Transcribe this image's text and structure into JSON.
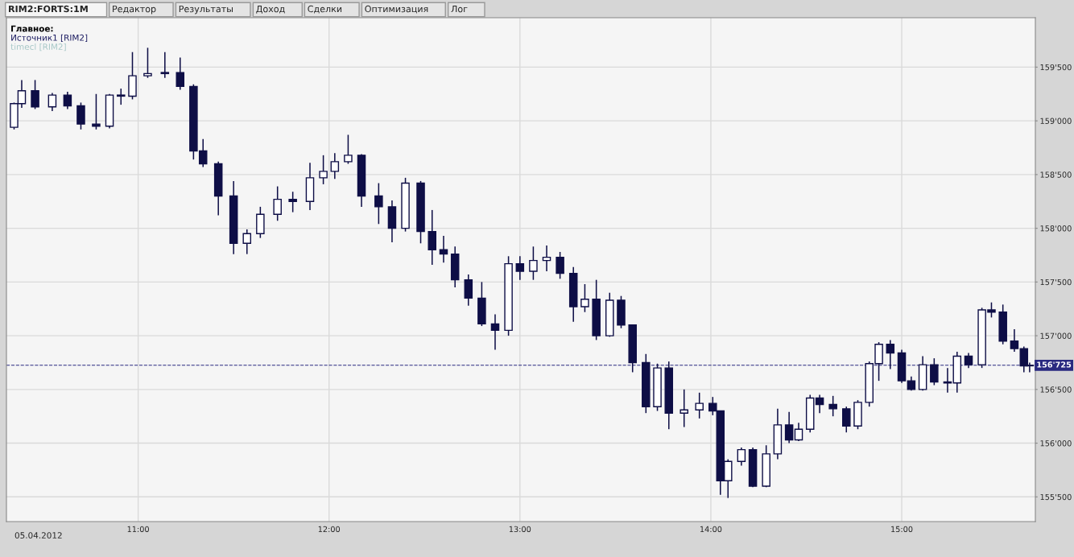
{
  "chart_data": {
    "type": "candlestick",
    "color": "#0e0e46",
    "x": [
      10.35,
      10.39,
      10.46,
      10.55,
      10.63,
      10.7,
      10.78,
      10.85,
      10.91,
      10.97,
      11.05,
      11.14,
      11.22,
      11.29,
      11.34,
      11.42,
      11.5,
      11.57,
      11.64,
      11.73,
      11.81,
      11.9,
      11.97,
      12.03,
      12.1,
      12.17,
      12.26,
      12.33,
      12.4,
      12.48,
      12.54,
      12.6,
      12.66,
      12.73,
      12.8,
      12.87,
      12.94,
      13.0,
      13.07,
      13.14,
      13.21,
      13.28,
      13.34,
      13.4,
      13.47,
      13.53,
      13.59,
      13.66,
      13.72,
      13.78,
      13.86,
      13.94,
      14.01,
      14.05,
      14.09,
      14.16,
      14.22,
      14.29,
      14.35,
      14.41,
      14.46,
      14.52,
      14.57,
      14.64,
      14.71,
      14.77,
      14.83,
      14.88,
      14.94,
      15.0,
      15.05,
      15.11,
      15.17,
      15.24,
      15.29,
      15.35,
      15.42,
      15.47,
      15.53,
      15.59,
      15.64,
      15.67
    ],
    "ohlc": [
      [
        158940,
        159170,
        158920,
        159160
      ],
      [
        159160,
        159380,
        159120,
        159280
      ],
      [
        159280,
        159380,
        159110,
        159130
      ],
      [
        159130,
        159260,
        159090,
        159240
      ],
      [
        159240,
        159270,
        159110,
        159140
      ],
      [
        159140,
        159170,
        158920,
        158970
      ],
      [
        158970,
        159250,
        158920,
        158950
      ],
      [
        158950,
        159250,
        158930,
        159240
      ],
      [
        159240,
        159300,
        159150,
        159230
      ],
      [
        159230,
        159640,
        159200,
        159420
      ],
      [
        159420,
        159680,
        159400,
        159440
      ],
      [
        159440,
        159640,
        159400,
        159450
      ],
      [
        159450,
        159590,
        159290,
        159320
      ],
      [
        159320,
        159340,
        158640,
        158720
      ],
      [
        158720,
        158830,
        158570,
        158600
      ],
      [
        158600,
        158620,
        158120,
        158300
      ],
      [
        158300,
        158440,
        157760,
        157860
      ],
      [
        157860,
        157990,
        157760,
        157950
      ],
      [
        157950,
        158200,
        157910,
        158130
      ],
      [
        158130,
        158390,
        158070,
        158270
      ],
      [
        158270,
        158340,
        158150,
        158250
      ],
      [
        158250,
        158610,
        158170,
        158470
      ],
      [
        158470,
        158680,
        158410,
        158530
      ],
      [
        158530,
        158700,
        158460,
        158620
      ],
      [
        158620,
        158870,
        158600,
        158680
      ],
      [
        158680,
        158690,
        158200,
        158300
      ],
      [
        158300,
        158420,
        158040,
        158200
      ],
      [
        158200,
        158260,
        157870,
        158000
      ],
      [
        158000,
        158470,
        157970,
        158420
      ],
      [
        158420,
        158440,
        157860,
        157970
      ],
      [
        157970,
        158170,
        157660,
        157800
      ],
      [
        157800,
        157930,
        157680,
        157760
      ],
      [
        157760,
        157830,
        157450,
        157520
      ],
      [
        157520,
        157570,
        157280,
        157350
      ],
      [
        157350,
        157500,
        157090,
        157110
      ],
      [
        157110,
        157200,
        156870,
        157050
      ],
      [
        157050,
        157740,
        157000,
        157670
      ],
      [
        157670,
        157740,
        157520,
        157600
      ],
      [
        157600,
        157830,
        157520,
        157700
      ],
      [
        157700,
        157840,
        157600,
        157730
      ],
      [
        157730,
        157780,
        157530,
        157580
      ],
      [
        157580,
        157640,
        157130,
        157270
      ],
      [
        157270,
        157480,
        157220,
        157340
      ],
      [
        157340,
        157520,
        156960,
        157000
      ],
      [
        157000,
        157400,
        156990,
        157330
      ],
      [
        157330,
        157370,
        157070,
        157100
      ],
      [
        157100,
        157100,
        156660,
        156750
      ],
      [
        156750,
        156830,
        156280,
        156340
      ],
      [
        156340,
        156740,
        156300,
        156700
      ],
      [
        156700,
        156760,
        156130,
        156280
      ],
      [
        156280,
        156500,
        156150,
        156310
      ],
      [
        156310,
        156470,
        156230,
        156370
      ],
      [
        156370,
        156430,
        156260,
        156300
      ],
      [
        156300,
        156300,
        155520,
        155650
      ],
      [
        155650,
        155850,
        155490,
        155830
      ],
      [
        155830,
        155960,
        155790,
        155940
      ],
      [
        155940,
        155960,
        155590,
        155600
      ],
      [
        155600,
        155980,
        155590,
        155900
      ],
      [
        155900,
        156320,
        155850,
        156170
      ],
      [
        156170,
        156290,
        156000,
        156030
      ],
      [
        156030,
        156190,
        156020,
        156130
      ],
      [
        156130,
        156450,
        156100,
        156420
      ],
      [
        156420,
        156450,
        156280,
        156360
      ],
      [
        156360,
        156440,
        156250,
        156320
      ],
      [
        156320,
        156340,
        156100,
        156160
      ],
      [
        156160,
        156400,
        156130,
        156380
      ],
      [
        156380,
        156760,
        156340,
        156740
      ],
      [
        156740,
        156940,
        156580,
        156920
      ],
      [
        156920,
        156960,
        156690,
        156840
      ],
      [
        156840,
        156870,
        156560,
        156580
      ],
      [
        156580,
        156620,
        156490,
        156500
      ],
      [
        156500,
        156810,
        156490,
        156730
      ],
      [
        156730,
        156790,
        156540,
        156570
      ],
      [
        156570,
        156700,
        156470,
        156560
      ],
      [
        156560,
        156850,
        156470,
        156810
      ],
      [
        156810,
        156840,
        156700,
        156730
      ],
      [
        156730,
        157260,
        156700,
        157240
      ],
      [
        157240,
        157310,
        157170,
        157220
      ],
      [
        157220,
        157290,
        156920,
        156950
      ],
      [
        156950,
        157060,
        156850,
        156880
      ],
      [
        156880,
        156900,
        156660,
        156720
      ],
      [
        156720,
        156750,
        156660,
        156725
      ]
    ],
    "xlim": [
      10.31,
      15.7
    ],
    "xticks": [
      {
        "value": 11,
        "label": "11:00"
      },
      {
        "value": 12,
        "label": "12:00"
      },
      {
        "value": 13,
        "label": "13:00"
      },
      {
        "value": 14,
        "label": "14:00"
      },
      {
        "value": 15,
        "label": "15:00"
      }
    ],
    "ylim": [
      155270,
      159960
    ],
    "yticks": [
      {
        "value": 155500,
        "label": "155'500"
      },
      {
        "value": 156000,
        "label": "156'000"
      },
      {
        "value": 156500,
        "label": "156'500"
      },
      {
        "value": 157000,
        "label": "157'000"
      },
      {
        "value": 157500,
        "label": "157'500"
      },
      {
        "value": 158000,
        "label": "158'000"
      },
      {
        "value": 158500,
        "label": "158'500"
      },
      {
        "value": 159000,
        "label": "159'000"
      },
      {
        "value": 159500,
        "label": "159'500"
      }
    ],
    "grid": true,
    "ref_lines": [
      {
        "axis": "y",
        "value": 156725,
        "label": "156'725",
        "color": "#2a2a80",
        "line_style": "dashed"
      }
    ],
    "annotations": [
      "RIM2:FORTS:1M",
      "Редактор",
      "Результаты",
      "Доход",
      "Сделки",
      "Оптимизация",
      "Лог",
      "Главное:",
      "Источник1 [RIM2]",
      "timecl [RIM2]",
      "05.04.2012"
    ]
  }
}
